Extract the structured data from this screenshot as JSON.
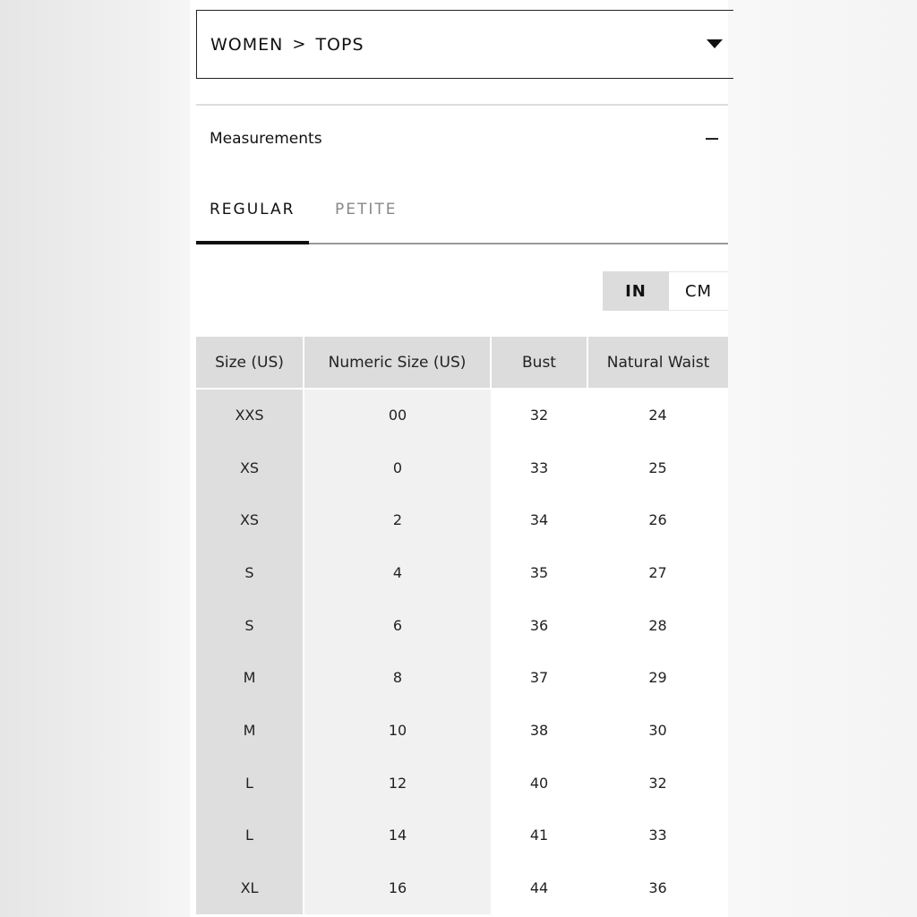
{
  "breadcrumb": {
    "parent": "WOMEN",
    "separator": ">",
    "current": "TOPS"
  },
  "section": {
    "title": "Measurements",
    "toggle": "collapse"
  },
  "tabs": [
    {
      "label": "REGULAR",
      "active": true
    },
    {
      "label": "PETITE",
      "active": false
    }
  ],
  "units": [
    {
      "label": "IN",
      "active": true
    },
    {
      "label": "CM",
      "active": false
    }
  ],
  "table": {
    "headers": [
      "Size (US)",
      "Numeric Size (US)",
      "Bust",
      "Natural Waist"
    ],
    "rows": [
      [
        "XXS",
        "00",
        "32",
        "24"
      ],
      [
        "XS",
        "0",
        "33",
        "25"
      ],
      [
        "XS",
        "2",
        "34",
        "26"
      ],
      [
        "S",
        "4",
        "35",
        "27"
      ],
      [
        "S",
        "6",
        "36",
        "28"
      ],
      [
        "M",
        "8",
        "37",
        "29"
      ],
      [
        "M",
        "10",
        "38",
        "30"
      ],
      [
        "L",
        "12",
        "40",
        "32"
      ],
      [
        "L",
        "14",
        "41",
        "33"
      ],
      [
        "XL",
        "16",
        "44",
        "36"
      ]
    ]
  }
}
